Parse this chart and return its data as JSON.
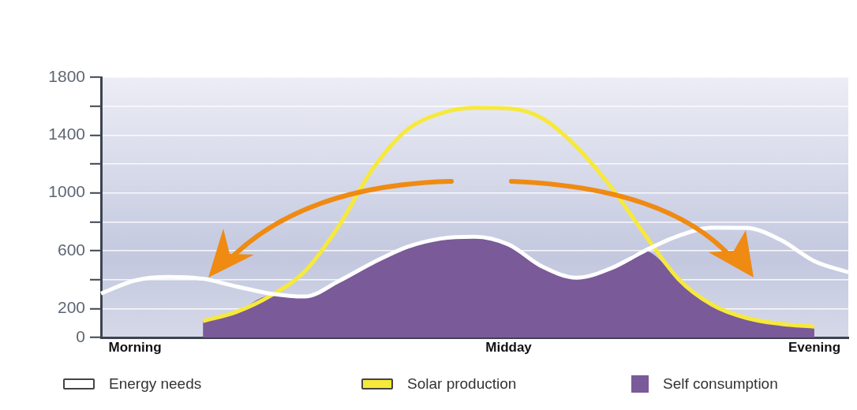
{
  "chart_data": {
    "type": "line",
    "categories": [
      null,
      "Morning",
      null,
      null,
      null,
      null,
      null,
      null,
      null,
      null,
      null,
      null,
      "Midday",
      null,
      null,
      null,
      null,
      null,
      null,
      null,
      null,
      "Evening",
      null
    ],
    "ylim": [
      0,
      1800
    ],
    "yticks": [
      0,
      200,
      {
        "value": 400,
        "label": null
      },
      600,
      {
        "value": 800,
        "label": null
      },
      1000,
      {
        "value": 1200,
        "label": null
      },
      1400,
      {
        "value": 1600,
        "label": null
      },
      1800
    ],
    "grid": "y",
    "legend": "bottom",
    "series": [
      {
        "name": "Energy needs",
        "type": "line",
        "color": "#ffffff",
        "values": [
          304,
          394,
          418,
          406,
          352,
          303,
          283,
          390,
          517,
          625,
          684,
          697,
          643,
          489,
          413,
          477,
          599,
          703,
          760,
          758,
          676,
          528,
          451
        ]
      },
      {
        "name": "Solar production",
        "type": "line",
        "color": "#f7e93c",
        "values": [
          null,
          null,
          null,
          113,
          178,
          290,
          457,
          771,
          1167,
          1435,
          1550,
          1588,
          1584,
          1515,
          1318,
          1045,
          715,
          404,
          225,
          135,
          94,
          74,
          null
        ]
      },
      {
        "name": "Self consumption",
        "type": "area",
        "color": "#7a5a99",
        "values": [
          null,
          null,
          null,
          113,
          178,
          290,
          283,
          390,
          517,
          625,
          684,
          697,
          643,
          489,
          413,
          477,
          599,
          404,
          225,
          135,
          94,
          74,
          null
        ]
      }
    ]
  }
}
